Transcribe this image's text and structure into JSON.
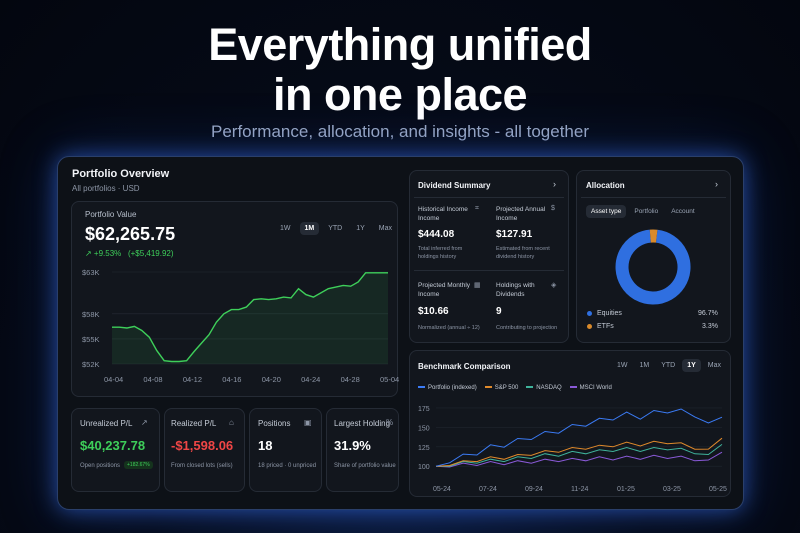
{
  "hero": {
    "title_line1": "Everything unified",
    "title_line2": "in one place",
    "subtitle": "Performance, allocation, and insights - all together"
  },
  "overview": {
    "title": "Portfolio Overview",
    "subtitle": "All portfolios · USD"
  },
  "portfolio_value": {
    "label": "Portfolio Value",
    "value": "$62,265.75",
    "change_pct": "↗ +9.53%",
    "change_abs": "(+$5,419.92)",
    "ranges": [
      "1W",
      "1M",
      "YTD",
      "1Y",
      "Max"
    ],
    "active_range": "1M"
  },
  "metrics": {
    "unrealized": {
      "label": "Unrealized P/L",
      "value": "$40,237.78",
      "note": "Open positions",
      "badge": "+182.67%"
    },
    "realized": {
      "label": "Realized P/L",
      "value": "-$1,598.06",
      "note": "From closed lots (sells)"
    },
    "positions": {
      "label": "Positions",
      "value": "18",
      "note": "18 priced · 0 unpriced"
    },
    "largest": {
      "label": "Largest Holding",
      "value": "31.9%",
      "note": "Share of portfolio value",
      "icon": "%"
    }
  },
  "dividend": {
    "title": "Dividend Summary",
    "historical": {
      "label1": "Historical Income",
      "label2": "Income",
      "value": "$444.08",
      "note1": "Total inferred from",
      "note2": "holdings history"
    },
    "projected_annual": {
      "label1": "Projected Annual",
      "label2": "Income",
      "value": "$127.91",
      "note1": "Estimated from recent",
      "note2": "dividend history"
    },
    "projected_monthly": {
      "label1": "Projected Monthly",
      "label2": "Income",
      "value": "$10.66",
      "note1": "Normalized (annual ÷ 12)"
    },
    "holdings": {
      "label1": "Holdings with",
      "label2": "Dividends",
      "value": "9",
      "note1": "Contributing to projection"
    }
  },
  "allocation": {
    "title": "Allocation",
    "tabs": [
      "Asset type",
      "Portfolio",
      "Account"
    ],
    "active_tab": "Asset type",
    "items": [
      {
        "name": "Equities",
        "pct": "96.7%",
        "value": 96.7,
        "color": "#2f6fe0"
      },
      {
        "name": "ETFs",
        "pct": "3.3%",
        "value": 3.3,
        "color": "#d98a2b"
      }
    ]
  },
  "benchmark": {
    "title": "Benchmark Comparison",
    "ranges": [
      "1W",
      "1M",
      "YTD",
      "1Y",
      "Max"
    ],
    "active_range": "1Y"
  },
  "chart_data": [
    {
      "type": "line",
      "series": [
        {
          "values": [
            56.4,
            56.4,
            56.3,
            56.5,
            56.0,
            55.2,
            53.6,
            52.4,
            52.3,
            52.3,
            52.4,
            53.5,
            54.5,
            55.5,
            57.0,
            58.0,
            58.5,
            58.5,
            58.8,
            59.7,
            59.8,
            59.7,
            59.8,
            60.0,
            59.9,
            61.0,
            60.3,
            60.0,
            60.5,
            61.0,
            61.2,
            61.4,
            61.3,
            61.8,
            62.9,
            62.9,
            62.9,
            62.9
          ],
          "color": "#3ecf5a"
        }
      ],
      "x_ticks": [
        "04-04",
        "04-08",
        "04-12",
        "04-16",
        "04-20",
        "04-24",
        "04-28",
        "05-04"
      ],
      "y_ticks": [
        "$52K",
        "$55K",
        "$58K",
        "$63K"
      ],
      "ylim": [
        52,
        63
      ]
    },
    {
      "type": "line",
      "legend": [
        "Portfolio (indexed)",
        "S&P 500",
        "NASDAQ",
        "MSCI World"
      ],
      "series": [
        {
          "name": "Portfolio (indexed)",
          "color": "#3b7bf5",
          "values": [
            100,
            108,
            112,
            118,
            124,
            128,
            132,
            138,
            141,
            146,
            150,
            155,
            158,
            163,
            166,
            164,
            168,
            172,
            170,
            167,
            152,
            163
          ]
        },
        {
          "name": "S&P 500",
          "color": "#e08a2b",
          "values": [
            100,
            103,
            105,
            108,
            110,
            111,
            113,
            116,
            118,
            120,
            122,
            124,
            125,
            127,
            129,
            128,
            130,
            131,
            128,
            124,
            120,
            136
          ]
        },
        {
          "name": "NASDAQ",
          "color": "#3fb39b",
          "values": [
            100,
            102,
            104,
            106,
            107,
            108,
            110,
            112,
            114,
            115,
            117,
            118,
            119,
            121,
            122,
            121,
            122,
            123,
            121,
            118,
            113,
            128
          ]
        },
        {
          "name": "MSCI World",
          "color": "#8a5ad8",
          "values": [
            100,
            101,
            102,
            103,
            104,
            104,
            105,
            106,
            107,
            108,
            108,
            109,
            110,
            110,
            111,
            111,
            112,
            112,
            111,
            109,
            106,
            118
          ]
        }
      ],
      "x_ticks": [
        "05-24",
        "07-24",
        "09-24",
        "11-24",
        "01-25",
        "03-25",
        "05-25"
      ],
      "y_ticks": [
        "100",
        "125",
        "150",
        "175"
      ],
      "ylim": [
        90,
        180
      ]
    }
  ]
}
